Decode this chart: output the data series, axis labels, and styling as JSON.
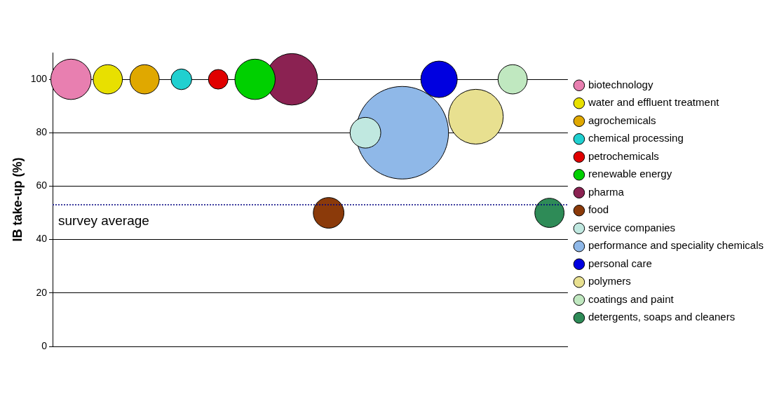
{
  "chart_data": {
    "type": "bubble",
    "ylabel": "IB take-up (%)",
    "categories": [
      null,
      null,
      null,
      null,
      null,
      null,
      null,
      null,
      null,
      null,
      null,
      null,
      null,
      null
    ],
    "series": [
      {
        "name": "biotechnology",
        "color": "#e87fb0",
        "values": [
          100,
          null,
          null,
          null,
          null,
          null,
          null,
          null,
          null,
          null,
          null,
          null,
          null,
          null
        ],
        "sizes": [
          0.19,
          null,
          null,
          null,
          null,
          null,
          null,
          null,
          null,
          null,
          null,
          null,
          null,
          null
        ]
      },
      {
        "name": "water and effluent treatment",
        "color": "#e8e000",
        "values": [
          null,
          100,
          null,
          null,
          null,
          null,
          null,
          null,
          null,
          null,
          null,
          null,
          null,
          null
        ],
        "sizes": [
          null,
          0.1,
          null,
          null,
          null,
          null,
          null,
          null,
          null,
          null,
          null,
          null,
          null,
          null
        ]
      },
      {
        "name": "agrochemicals",
        "color": "#e0a800",
        "values": [
          null,
          null,
          100,
          null,
          null,
          null,
          null,
          null,
          null,
          null,
          null,
          null,
          null,
          null
        ],
        "sizes": [
          null,
          null,
          0.1,
          null,
          null,
          null,
          null,
          null,
          null,
          null,
          null,
          null,
          null,
          null
        ]
      },
      {
        "name": "chemical processing",
        "color": "#20d0d0",
        "values": [
          null,
          null,
          null,
          100,
          null,
          null,
          null,
          null,
          null,
          null,
          null,
          null,
          null,
          null
        ],
        "sizes": [
          null,
          null,
          null,
          0.05,
          null,
          null,
          null,
          null,
          null,
          null,
          null,
          null,
          null,
          null
        ]
      },
      {
        "name": "petrochemicals",
        "color": "#e00000",
        "values": [
          null,
          null,
          null,
          null,
          100,
          null,
          null,
          null,
          null,
          null,
          null,
          null,
          null,
          null
        ],
        "sizes": [
          null,
          null,
          null,
          null,
          0.045,
          null,
          null,
          null,
          null,
          null,
          null,
          null,
          null,
          null
        ]
      },
      {
        "name": "renewable energy",
        "color": "#00d000",
        "values": [
          null,
          null,
          null,
          null,
          null,
          100,
          null,
          null,
          null,
          null,
          null,
          null,
          null,
          null
        ],
        "sizes": [
          null,
          null,
          null,
          null,
          null,
          0.19,
          null,
          null,
          null,
          null,
          null,
          null,
          null,
          null
        ]
      },
      {
        "name": "pharma",
        "color": "#8b2252",
        "values": [
          null,
          null,
          null,
          null,
          null,
          null,
          100,
          null,
          null,
          null,
          null,
          null,
          null,
          null
        ],
        "sizes": [
          null,
          null,
          null,
          null,
          null,
          null,
          0.31,
          null,
          null,
          null,
          null,
          null,
          null,
          null
        ]
      },
      {
        "name": "food",
        "color": "#8b3a0a",
        "values": [
          null,
          null,
          null,
          null,
          null,
          null,
          null,
          50,
          null,
          null,
          null,
          null,
          null,
          null
        ],
        "sizes": [
          null,
          null,
          null,
          null,
          null,
          null,
          null,
          0.11,
          null,
          null,
          null,
          null,
          null,
          null
        ]
      },
      {
        "name": "service companies",
        "color": "#c0e8e0",
        "values": [
          null,
          null,
          null,
          null,
          null,
          null,
          null,
          null,
          80,
          null,
          null,
          null,
          null,
          null
        ],
        "sizes": [
          null,
          null,
          null,
          null,
          null,
          null,
          null,
          null,
          0.11,
          null,
          null,
          null,
          null,
          null
        ]
      },
      {
        "name": "performance and speciality chemicals",
        "color": "#8fb8e8",
        "values": [
          null,
          null,
          null,
          null,
          null,
          null,
          null,
          null,
          null,
          80,
          null,
          null,
          null,
          null
        ],
        "sizes": [
          null,
          null,
          null,
          null,
          null,
          null,
          null,
          null,
          null,
          1,
          null,
          null,
          null,
          null
        ]
      },
      {
        "name": "personal care",
        "color": "#0000e0",
        "values": [
          null,
          null,
          null,
          null,
          null,
          null,
          null,
          null,
          null,
          null,
          100,
          null,
          null,
          null
        ],
        "sizes": [
          null,
          null,
          null,
          null,
          null,
          null,
          null,
          null,
          null,
          null,
          0.155,
          null,
          null,
          null
        ]
      },
      {
        "name": "polymers",
        "color": "#e8e090",
        "values": [
          null,
          null,
          null,
          null,
          null,
          null,
          null,
          null,
          null,
          null,
          null,
          86,
          null,
          null
        ],
        "sizes": [
          null,
          null,
          null,
          null,
          null,
          null,
          null,
          null,
          null,
          null,
          null,
          0.35,
          null,
          null
        ]
      },
      {
        "name": "coatings and paint",
        "color": "#c0e8c0",
        "values": [
          null,
          null,
          null,
          null,
          null,
          null,
          null,
          null,
          null,
          null,
          null,
          null,
          100,
          null
        ],
        "sizes": [
          null,
          null,
          null,
          null,
          null,
          null,
          null,
          null,
          null,
          null,
          null,
          null,
          0.1,
          null
        ]
      },
      {
        "name": "detergents, soaps and cleaners",
        "color": "#2e8b57",
        "values": [
          null,
          null,
          null,
          null,
          null,
          null,
          null,
          null,
          null,
          null,
          null,
          null,
          null,
          50
        ],
        "sizes": [
          null,
          null,
          null,
          null,
          null,
          null,
          null,
          null,
          null,
          null,
          null,
          null,
          null,
          0.1
        ]
      }
    ],
    "ylim": [
      0,
      110
    ],
    "yticks": [
      0,
      20,
      40,
      60,
      80,
      100
    ],
    "grid": "y",
    "legend": "right",
    "tick_labels": "y",
    "ref_lines": [
      {
        "axis": "y",
        "value": 53,
        "label": "survey average",
        "color": "#000080",
        "line_style": "dotted"
      }
    ]
  }
}
